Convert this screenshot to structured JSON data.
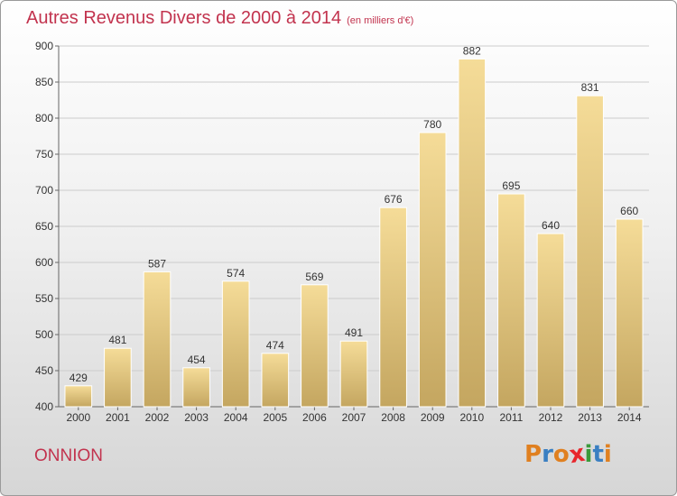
{
  "header": {
    "title": "Autres Revenus Divers de 2000 à 2014",
    "unit": "(en milliers d'€)"
  },
  "footer": {
    "commune": "ONNION",
    "logo": "Proxiti",
    "logo_colors": [
      "#e08020",
      "#3a7fc2",
      "#e08020",
      "#e8262c",
      "#3a9a3a",
      "#3a7fc2",
      "#e08020"
    ]
  },
  "colors": {
    "title": "#c2334e",
    "bar_top": "#f5dc98",
    "bar_bottom": "#c4a660",
    "bar_edge": "#ffffff",
    "grid": "#cccccc",
    "axis": "#666666"
  },
  "chart_data": {
    "type": "bar",
    "title": "Autres Revenus Divers de 2000 à 2014",
    "xlabel": "",
    "ylabel": "",
    "categories": [
      "2000",
      "2001",
      "2002",
      "2003",
      "2004",
      "2005",
      "2006",
      "2007",
      "2008",
      "2009",
      "2010",
      "2011",
      "2012",
      "2013",
      "2014"
    ],
    "values": [
      429,
      481,
      587,
      454,
      574,
      474,
      569,
      491,
      676,
      780,
      882,
      695,
      640,
      831,
      660
    ],
    "ylim": [
      400,
      900
    ],
    "yticks": [
      400,
      450,
      500,
      550,
      600,
      650,
      700,
      750,
      800,
      850,
      900
    ],
    "grid": true,
    "data_labels": true
  }
}
